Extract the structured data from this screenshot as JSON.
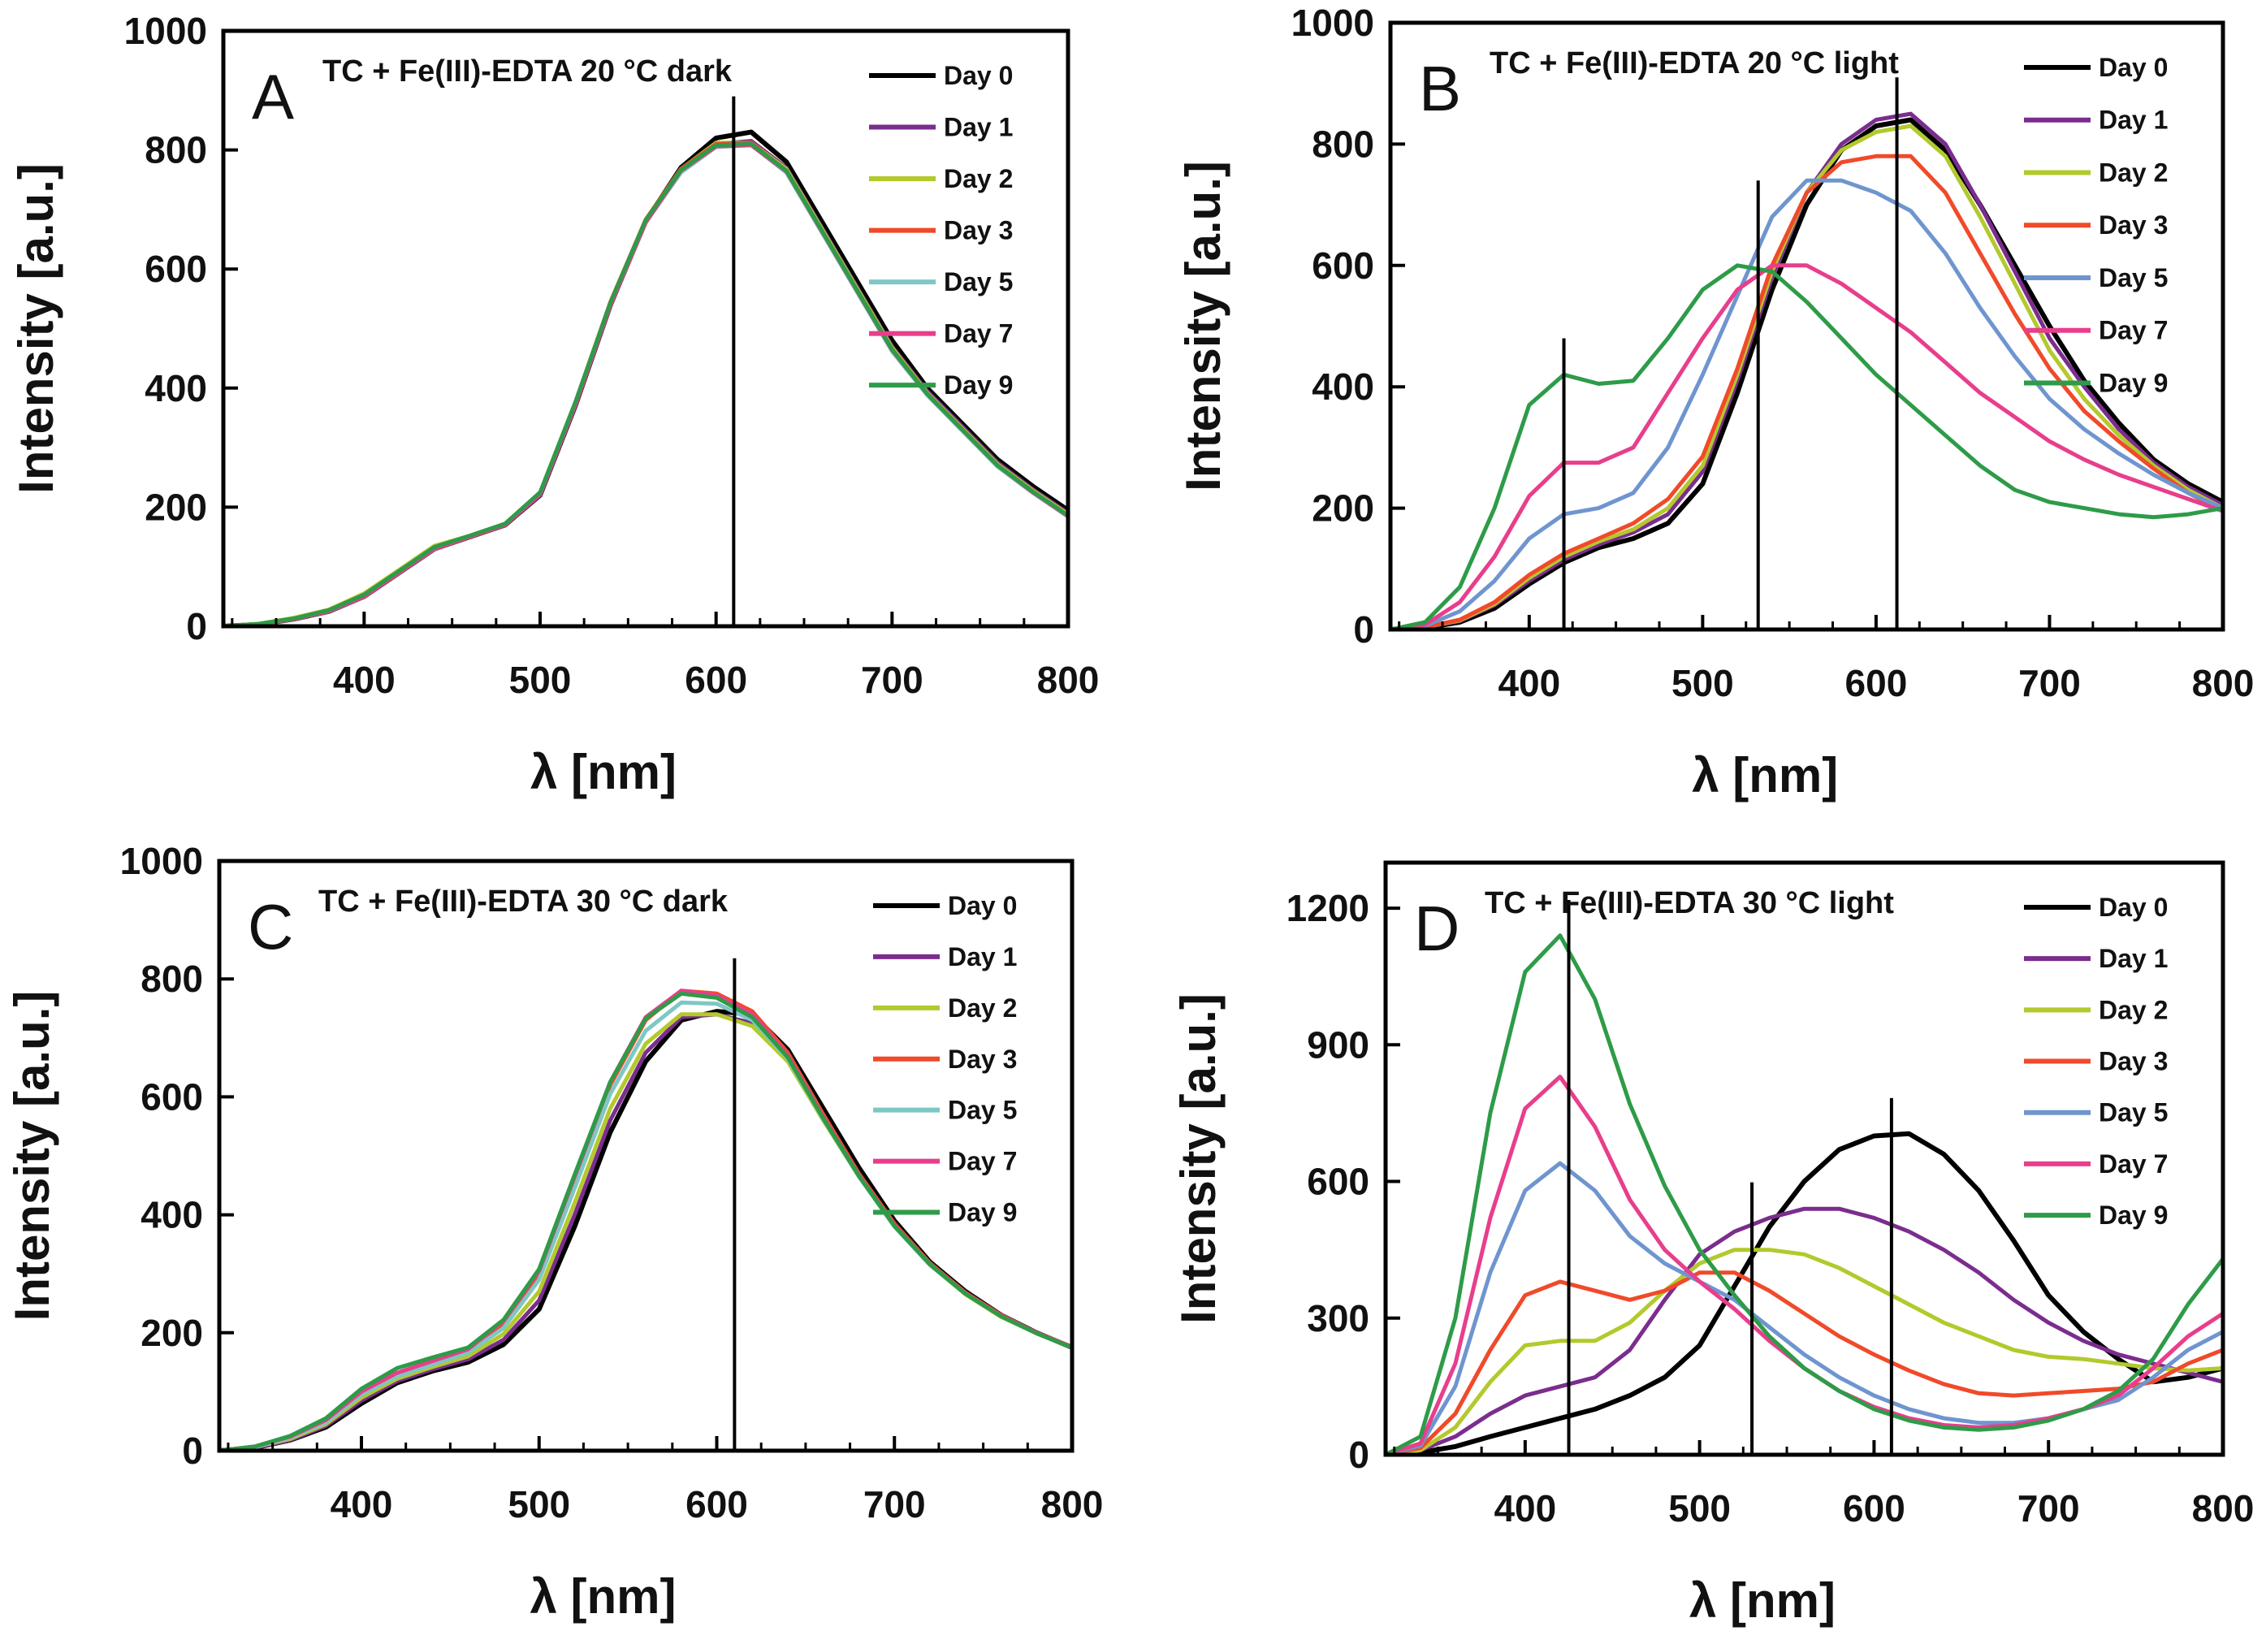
{
  "chart_data": [
    {
      "type": "line",
      "panel": "A",
      "title": "TC + Fe(III)-EDTA  20 °C dark",
      "xlabel": "λ [nm]",
      "ylabel": "Intensity [a.u.]",
      "xlim": [
        320,
        800
      ],
      "ylim": [
        0,
        1000
      ],
      "xticks": [
        400,
        500,
        600,
        700,
        800
      ],
      "yticks": [
        0,
        200,
        400,
        600,
        800,
        1000
      ],
      "vlines": [
        610
      ],
      "legend_position": "top-right",
      "x": [
        320,
        340,
        360,
        380,
        400,
        420,
        440,
        460,
        480,
        500,
        520,
        540,
        560,
        580,
        600,
        620,
        640,
        660,
        680,
        700,
        720,
        740,
        760,
        780,
        800
      ],
      "series": [
        {
          "name": "Day 0",
          "color": "#000000",
          "values": [
            0,
            3,
            12,
            25,
            50,
            90,
            130,
            150,
            170,
            220,
            370,
            540,
            680,
            770,
            820,
            830,
            780,
            680,
            580,
            480,
            400,
            340,
            280,
            235,
            195
          ]
        },
        {
          "name": "Day 1",
          "color": "#7b2d8e",
          "values": [
            0,
            3,
            12,
            25,
            50,
            90,
            130,
            150,
            170,
            220,
            370,
            540,
            680,
            765,
            810,
            815,
            770,
            670,
            570,
            470,
            395,
            335,
            275,
            230,
            190
          ]
        },
        {
          "name": "Day 2",
          "color": "#b3c92c",
          "values": [
            0,
            4,
            14,
            28,
            55,
            95,
            135,
            152,
            172,
            222,
            372,
            542,
            682,
            768,
            812,
            812,
            768,
            668,
            568,
            468,
            392,
            332,
            272,
            228,
            188
          ]
        },
        {
          "name": "Day 3",
          "color": "#f04a2a",
          "values": [
            0,
            3,
            12,
            26,
            52,
            92,
            132,
            151,
            171,
            224,
            375,
            545,
            683,
            768,
            810,
            812,
            765,
            665,
            565,
            465,
            390,
            330,
            270,
            225,
            185
          ]
        },
        {
          "name": "Day 5",
          "color": "#7fc7c4",
          "values": [
            0,
            3,
            12,
            25,
            50,
            90,
            130,
            150,
            170,
            222,
            372,
            540,
            678,
            762,
            805,
            808,
            762,
            662,
            562,
            462,
            388,
            328,
            268,
            224,
            184
          ]
        },
        {
          "name": "Day 7",
          "color": "#e83e8c",
          "values": [
            0,
            3,
            12,
            25,
            50,
            90,
            130,
            150,
            170,
            222,
            372,
            540,
            678,
            765,
            806,
            808,
            764,
            664,
            564,
            464,
            390,
            330,
            270,
            225,
            185
          ]
        },
        {
          "name": "Day 9",
          "color": "#2e9b48",
          "values": [
            0,
            4,
            13,
            27,
            53,
            93,
            133,
            152,
            172,
            225,
            376,
            544,
            682,
            766,
            808,
            810,
            765,
            665,
            565,
            465,
            390,
            330,
            270,
            226,
            186
          ]
        }
      ]
    },
    {
      "type": "line",
      "panel": "B",
      "title": "TC + Fe(III)-EDTA 20 °C light",
      "xlabel": "λ [nm]",
      "ylabel": "Intensity [a.u.]",
      "xlim": [
        320,
        800
      ],
      "ylim": [
        0,
        1000
      ],
      "xticks": [
        400,
        500,
        600,
        700,
        800
      ],
      "yticks": [
        0,
        200,
        400,
        600,
        800,
        1000
      ],
      "vlines": [
        420,
        532,
        612
      ],
      "legend_position": "top-right",
      "x": [
        320,
        340,
        360,
        380,
        400,
        420,
        440,
        460,
        480,
        500,
        520,
        540,
        560,
        580,
        600,
        620,
        640,
        660,
        680,
        700,
        720,
        740,
        760,
        780,
        800
      ],
      "series": [
        {
          "name": "Day 0",
          "color": "#000000",
          "values": [
            0,
            3,
            12,
            35,
            75,
            110,
            135,
            150,
            175,
            240,
            390,
            560,
            700,
            790,
            830,
            840,
            790,
            700,
            600,
            500,
            410,
            340,
            280,
            240,
            210
          ]
        },
        {
          "name": "Day 1",
          "color": "#7b2d8e",
          "values": [
            0,
            4,
            14,
            40,
            80,
            115,
            140,
            160,
            190,
            260,
            410,
            580,
            720,
            800,
            840,
            850,
            800,
            700,
            590,
            480,
            400,
            330,
            275,
            235,
            205
          ]
        },
        {
          "name": "Day 2",
          "color": "#b3c92c",
          "values": [
            0,
            4,
            15,
            42,
            85,
            120,
            145,
            165,
            200,
            270,
            420,
            590,
            720,
            790,
            820,
            830,
            780,
            680,
            570,
            460,
            380,
            320,
            270,
            230,
            200
          ]
        },
        {
          "name": "Day 3",
          "color": "#f04a2a",
          "values": [
            0,
            4,
            16,
            45,
            90,
            125,
            150,
            175,
            215,
            285,
            430,
            600,
            720,
            770,
            780,
            780,
            720,
            620,
            520,
            430,
            360,
            310,
            265,
            225,
            195
          ]
        },
        {
          "name": "Day 5",
          "color": "#6f95cf",
          "values": [
            0,
            6,
            30,
            80,
            150,
            190,
            200,
            225,
            300,
            420,
            550,
            680,
            740,
            740,
            720,
            690,
            620,
            530,
            450,
            380,
            330,
            290,
            255,
            225,
            200
          ]
        },
        {
          "name": "Day 7",
          "color": "#e83e8c",
          "values": [
            0,
            8,
            45,
            120,
            220,
            275,
            275,
            300,
            390,
            480,
            560,
            600,
            600,
            570,
            530,
            490,
            440,
            390,
            350,
            310,
            280,
            255,
            235,
            215,
            195
          ]
        },
        {
          "name": "Day 9",
          "color": "#2e9b48",
          "values": [
            0,
            12,
            70,
            200,
            370,
            420,
            405,
            410,
            480,
            560,
            600,
            590,
            540,
            480,
            420,
            370,
            320,
            270,
            230,
            210,
            200,
            190,
            185,
            190,
            200
          ]
        }
      ]
    },
    {
      "type": "line",
      "panel": "C",
      "title": "TC + Fe(III)-EDTA 30 °C dark",
      "xlabel": "λ [nm]",
      "ylabel": "Intensity [a.u.]",
      "xlim": [
        320,
        800
      ],
      "ylim": [
        0,
        1000
      ],
      "xticks": [
        400,
        500,
        600,
        700,
        800
      ],
      "yticks": [
        0,
        200,
        400,
        600,
        800,
        1000
      ],
      "vlines": [
        610
      ],
      "legend_position": "top-right",
      "x": [
        320,
        340,
        360,
        380,
        400,
        420,
        440,
        460,
        480,
        500,
        520,
        540,
        560,
        580,
        600,
        620,
        640,
        660,
        680,
        700,
        720,
        740,
        760,
        780,
        800
      ],
      "series": [
        {
          "name": "Day 0",
          "color": "#000000",
          "values": [
            0,
            5,
            18,
            40,
            80,
            115,
            135,
            150,
            180,
            240,
            380,
            540,
            660,
            730,
            745,
            740,
            680,
            580,
            480,
            390,
            320,
            270,
            230,
            200,
            175
          ]
        },
        {
          "name": "Day 1",
          "color": "#7b2d8e",
          "values": [
            0,
            5,
            18,
            42,
            85,
            118,
            138,
            155,
            188,
            255,
            400,
            560,
            675,
            735,
            740,
            725,
            665,
            565,
            468,
            382,
            316,
            266,
            228,
            200,
            175
          ]
        },
        {
          "name": "Day 2",
          "color": "#b3c92c",
          "values": [
            0,
            6,
            20,
            45,
            90,
            122,
            142,
            160,
            198,
            270,
            420,
            580,
            690,
            740,
            740,
            720,
            660,
            560,
            465,
            380,
            315,
            265,
            227,
            199,
            175
          ]
        },
        {
          "name": "Day 3",
          "color": "#f04a2a",
          "values": [
            0,
            6,
            22,
            48,
            95,
            128,
            150,
            170,
            215,
            300,
            460,
            620,
            730,
            780,
            775,
            745,
            675,
            570,
            470,
            385,
            318,
            268,
            230,
            200,
            176
          ]
        },
        {
          "name": "Day 5",
          "color": "#7fc7c4",
          "values": [
            0,
            6,
            22,
            48,
            95,
            126,
            146,
            166,
            208,
            290,
            445,
            605,
            712,
            760,
            758,
            730,
            665,
            562,
            465,
            380,
            315,
            266,
            228,
            199,
            175
          ]
        },
        {
          "name": "Day 7",
          "color": "#e83e8c",
          "values": [
            0,
            7,
            24,
            52,
            100,
            132,
            152,
            172,
            220,
            305,
            465,
            625,
            735,
            780,
            772,
            740,
            670,
            565,
            467,
            382,
            316,
            267,
            229,
            200,
            176
          ]
        },
        {
          "name": "Day 9",
          "color": "#2e9b48",
          "values": [
            0,
            7,
            25,
            55,
            105,
            140,
            158,
            175,
            222,
            308,
            468,
            625,
            733,
            775,
            768,
            735,
            667,
            563,
            466,
            381,
            316,
            266,
            228,
            199,
            175
          ]
        }
      ]
    },
    {
      "type": "line",
      "panel": "D",
      "title": "TC + Fe(III)-EDTA 30 °C light",
      "xlabel": "λ [nm]",
      "ylabel": "Intensity [a.u.]",
      "xlim": [
        320,
        800
      ],
      "ylim": [
        0,
        1300
      ],
      "xticks": [
        400,
        500,
        600,
        700,
        800
      ],
      "yticks": [
        0,
        300,
        600,
        900,
        1200
      ],
      "vlines": [
        425,
        530,
        610
      ],
      "legend_position": "top-right",
      "x": [
        320,
        340,
        360,
        380,
        400,
        420,
        440,
        460,
        480,
        500,
        520,
        540,
        560,
        580,
        600,
        620,
        640,
        660,
        680,
        700,
        720,
        740,
        760,
        780,
        800
      ],
      "series": [
        {
          "name": "Day 0",
          "color": "#000000",
          "values": [
            0,
            5,
            18,
            40,
            60,
            80,
            100,
            130,
            170,
            240,
            370,
            500,
            600,
            670,
            700,
            705,
            660,
            580,
            470,
            350,
            270,
            210,
            160,
            170,
            190
          ]
        },
        {
          "name": "Day 1",
          "color": "#7b2d8e",
          "values": [
            0,
            10,
            40,
            90,
            130,
            150,
            170,
            230,
            340,
            440,
            490,
            520,
            540,
            540,
            520,
            490,
            450,
            400,
            340,
            290,
            250,
            220,
            200,
            180,
            160
          ]
        },
        {
          "name": "Day 2",
          "color": "#b3c92c",
          "values": [
            0,
            10,
            60,
            160,
            240,
            250,
            250,
            290,
            360,
            420,
            450,
            450,
            440,
            410,
            370,
            330,
            290,
            260,
            230,
            215,
            210,
            200,
            190,
            185,
            190
          ]
        },
        {
          "name": "Day 3",
          "color": "#f04a2a",
          "values": [
            0,
            15,
            90,
            230,
            350,
            380,
            360,
            340,
            360,
            400,
            400,
            360,
            310,
            260,
            220,
            185,
            155,
            135,
            130,
            135,
            140,
            145,
            160,
            200,
            230
          ]
        },
        {
          "name": "Day 5",
          "color": "#6f95cf",
          "values": [
            0,
            20,
            150,
            400,
            580,
            640,
            580,
            480,
            420,
            380,
            340,
            280,
            220,
            170,
            130,
            100,
            80,
            70,
            70,
            80,
            100,
            120,
            170,
            230,
            270
          ]
        },
        {
          "name": "Day 7",
          "color": "#e83e8c",
          "values": [
            0,
            25,
            200,
            520,
            760,
            830,
            720,
            560,
            450,
            380,
            320,
            250,
            190,
            140,
            105,
            80,
            65,
            60,
            65,
            80,
            100,
            130,
            190,
            260,
            310
          ]
        },
        {
          "name": "Day 9",
          "color": "#2e9b48",
          "values": [
            0,
            40,
            300,
            750,
            1060,
            1140,
            1000,
            770,
            590,
            450,
            350,
            260,
            190,
            140,
            100,
            75,
            60,
            55,
            60,
            75,
            100,
            140,
            210,
            330,
            430
          ]
        }
      ]
    }
  ]
}
